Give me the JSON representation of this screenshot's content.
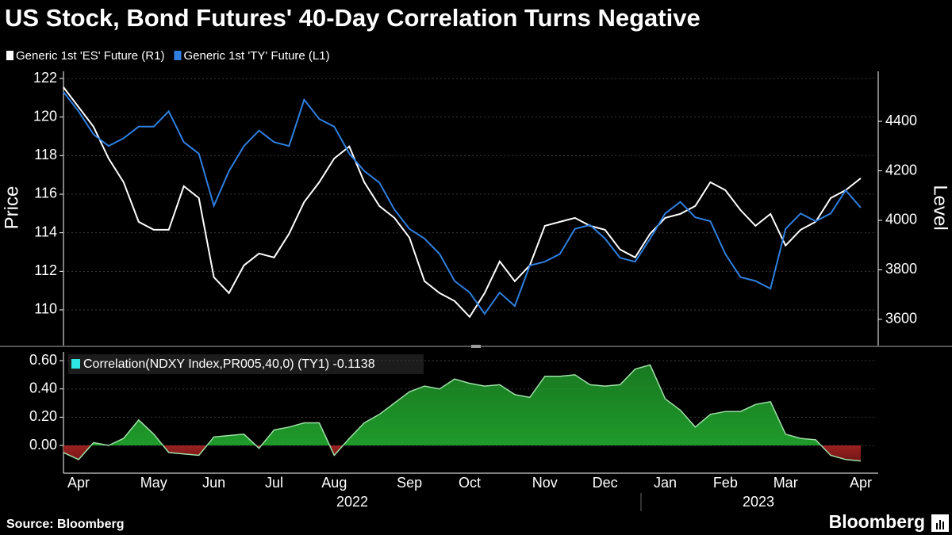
{
  "chart_data": [
    {
      "type": "line",
      "title": "US Stock, Bond Futures' 40-Day Correlation Turns Negative",
      "ylabel": "Price",
      "y2label": "Level",
      "ylim": [
        108.15,
        122.37
      ],
      "yticks": [
        110,
        112,
        114,
        116,
        118,
        120,
        122
      ],
      "y2lim": [
        3494,
        4602
      ],
      "y2ticks": [
        3600,
        3800,
        4000,
        4200,
        4400
      ],
      "grid": true,
      "series": [
        {
          "name": "Generic 1st 'ES' Future (R1)",
          "color": "#ffffff",
          "axis": "y2",
          "values": [
            4538,
            4458,
            4378,
            4250,
            4154,
            3994,
            3962,
            3962,
            4138,
            4090,
            3770,
            3706,
            3818,
            3866,
            3850,
            3946,
            4074,
            4154,
            4250,
            4298,
            4154,
            4058,
            4010,
            3930,
            3754,
            3706,
            3674,
            3610,
            3706,
            3834,
            3754,
            3818,
            3978,
            3994,
            4010,
            3978,
            3962,
            3882,
            3850,
            3946,
            4010,
            4026,
            4058,
            4154,
            4122,
            4042,
            3978,
            4026,
            3898,
            3962,
            3994,
            4090,
            4122,
            4170
          ]
        },
        {
          "name": "Generic 1st 'TY' Future (L1)",
          "color": "#2f7fe0",
          "values": [
            121.3,
            120.3,
            119.1,
            118.5,
            118.9,
            119.5,
            119.5,
            120.3,
            118.7,
            118.1,
            115.4,
            117.2,
            118.5,
            119.3,
            118.7,
            118.5,
            120.9,
            119.9,
            119.5,
            118.1,
            117.2,
            116.6,
            115.2,
            114.2,
            113.7,
            112.9,
            111.5,
            110.9,
            109.8,
            110.9,
            110.2,
            112.3,
            112.5,
            112.9,
            114.2,
            114.4,
            113.7,
            112.7,
            112.5,
            113.7,
            115.0,
            115.6,
            114.8,
            114.6,
            112.9,
            111.7,
            111.5,
            111.1,
            114.2,
            115.0,
            114.6,
            115.0,
            116.2,
            115.3
          ]
        }
      ]
    },
    {
      "type": "area",
      "ylim": [
        -0.185,
        0.662
      ],
      "yticks": [
        {
          "value": 0,
          "label": "0.00"
        },
        {
          "value": 0.2,
          "label": "0.20"
        },
        {
          "value": 0.4,
          "label": "0.40"
        },
        {
          "value": 0.6,
          "label": "0.60"
        }
      ],
      "grid": true,
      "categories": [
        null,
        "Apr",
        null,
        null,
        null,
        null,
        "May",
        null,
        null,
        null,
        "Jun",
        null,
        null,
        null,
        "Jul",
        null,
        null,
        null,
        "Aug",
        null,
        null,
        null,
        null,
        "Sep",
        null,
        null,
        null,
        "Oct",
        null,
        null,
        null,
        null,
        "Nov",
        null,
        null,
        null,
        "Dec",
        null,
        null,
        null,
        "Jan",
        null,
        null,
        null,
        "Feb",
        null,
        null,
        null,
        "Mar",
        null,
        null,
        null,
        null,
        "Apr"
      ],
      "x_group_labels": [
        "2022",
        "2023"
      ],
      "series": [
        {
          "name": "Correlation(NDXY Index,PR005,40,0) (TY1) -0.1138",
          "color": "#2ee6e6",
          "positive_color": "#1f9a2a",
          "negative_color": "#9b2020",
          "values": [
            -0.05,
            -0.1,
            0.02,
            0.0,
            0.05,
            0.18,
            0.08,
            -0.05,
            -0.06,
            -0.07,
            0.06,
            0.07,
            0.08,
            -0.02,
            0.11,
            0.13,
            0.16,
            0.16,
            -0.07,
            0.05,
            0.16,
            0.22,
            0.3,
            0.38,
            0.42,
            0.4,
            0.47,
            0.44,
            0.42,
            0.43,
            0.36,
            0.34,
            0.49,
            0.49,
            0.5,
            0.43,
            0.42,
            0.43,
            0.54,
            0.57,
            0.33,
            0.25,
            0.13,
            0.22,
            0.24,
            0.24,
            0.29,
            0.31,
            0.08,
            0.05,
            0.04,
            -0.07,
            -0.1,
            -0.11
          ]
        }
      ]
    }
  ],
  "source": "Source: Bloomberg",
  "brand": "Bloomberg"
}
